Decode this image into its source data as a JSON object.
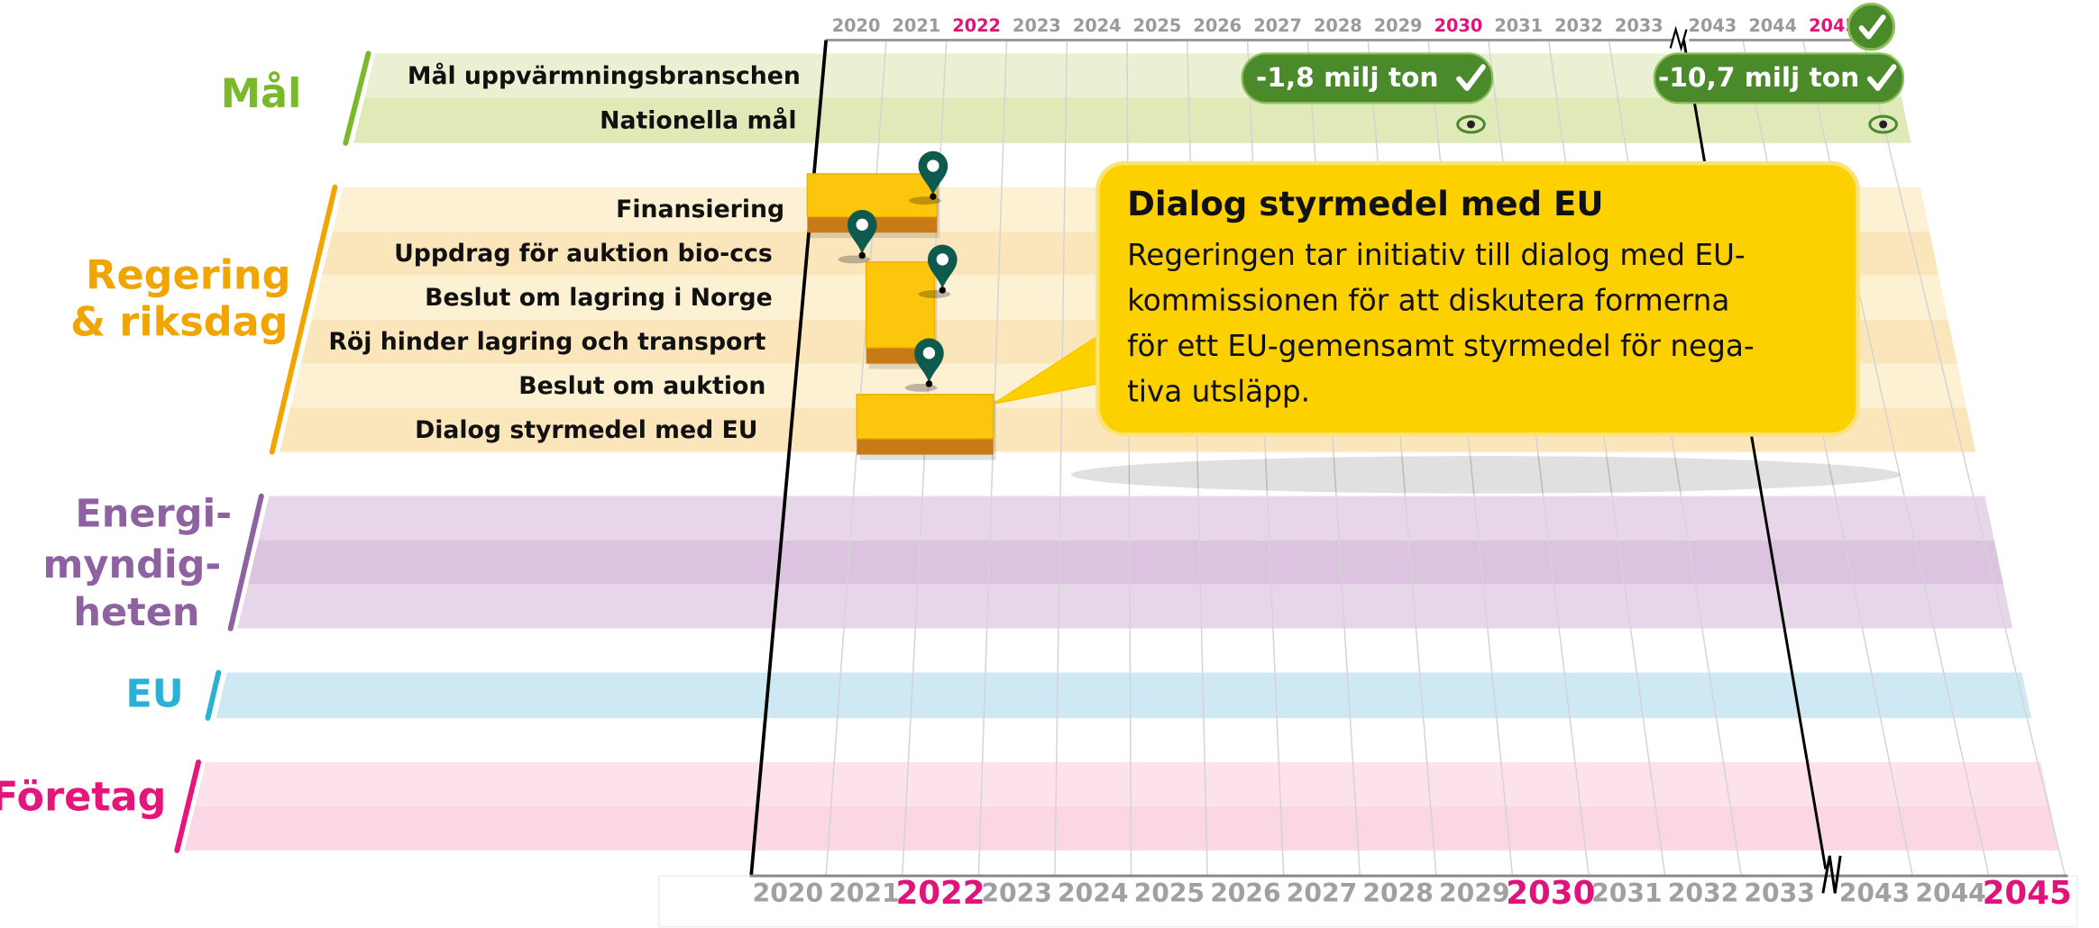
{
  "timeline": {
    "years": [
      "2020",
      "2021",
      "2022",
      "2023",
      "2024",
      "2025",
      "2026",
      "2027",
      "2028",
      "2029",
      "2030",
      "2031",
      "2032",
      "2033",
      "2043",
      "2044",
      "2045"
    ]
  },
  "groups": [
    {
      "label": [
        "Mål"
      ],
      "rows": [
        "Mål uppvärmningsbranschen",
        "Nationella mål"
      ]
    },
    {
      "label": [
        "Regering",
        "& riksdag"
      ],
      "rows": [
        "Finansiering",
        "Uppdrag för auktion bio-ccs",
        "Beslut om lagring i Norge",
        "Röj hinder lagring och transport",
        "Beslut om auktion",
        "Dialog styrmedel med EU"
      ]
    },
    {
      "label": [
        "Energi-",
        "myndig-",
        "heten"
      ],
      "rows": []
    },
    {
      "label": [
        "EU"
      ],
      "rows": []
    },
    {
      "label": [
        "Företag"
      ],
      "rows": []
    }
  ],
  "badges": [
    "-1,8 milj ton",
    "-10,7 milj ton"
  ],
  "callout": {
    "title": "Dialog styrmedel med EU",
    "text": [
      "Regeringen tar initiativ till dialog med EU-",
      "kommissionen för att diskutera formerna",
      "för ett EU-gemensamt styrmedel för nega-",
      "tiva utsläpp."
    ]
  }
}
